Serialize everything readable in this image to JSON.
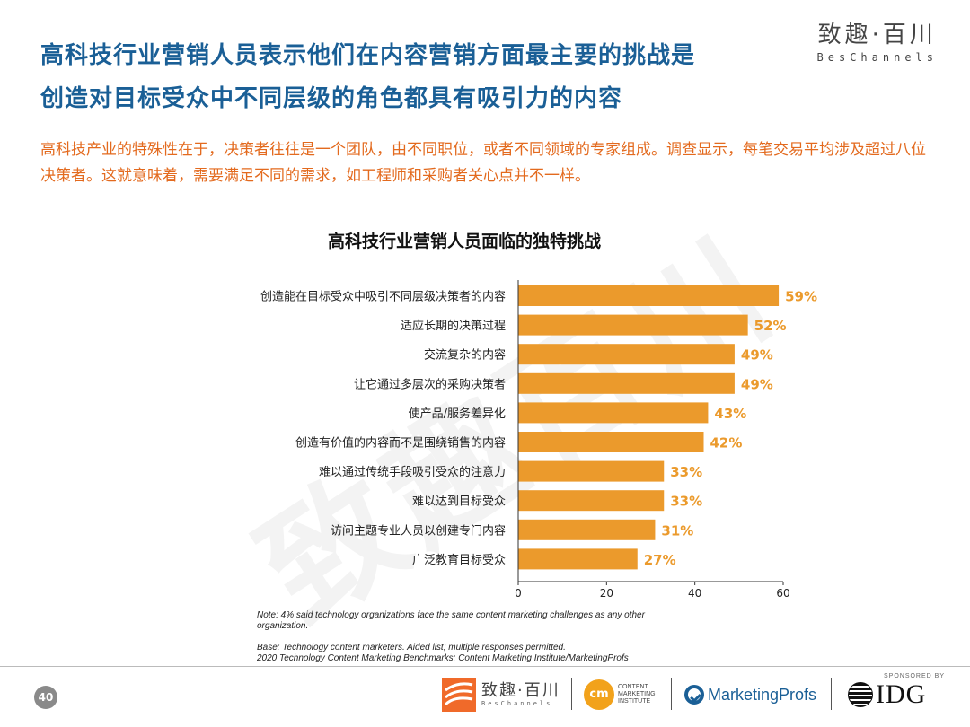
{
  "watermark": "致趣百川",
  "title": {
    "line1": "高科技行业营销人员表示他们在内容营销方面最主要的挑战是",
    "line2": "创造对目标受众中不同层级的角色都具有吸引力的内容"
  },
  "logo_top": {
    "cn": "致趣·百川",
    "en": "BesChannels"
  },
  "intro": "高科技产业的特殊性在于，决策者往往是一个团队，由不同职位，或者不同领域的专家组成。调查显示，每笔交易平均涉及超过八位决策者。这就意味着，需要满足不同的需求，如工程师和采购者关心点并不一样。",
  "chart_data": {
    "type": "bar",
    "orientation": "horizontal",
    "title": "高科技行业营销人员面临的独特挑战",
    "categories": [
      "创造能在目标受众中吸引不同层级决策者的内容",
      "适应长期的决策过程",
      "交流复杂的内容",
      "让它通过多层次的采购决策者",
      "使产品/服务差异化",
      "创造有价值的内容而不是围绕销售的内容",
      "难以通过传统手段吸引受众的注意力",
      "难以达到目标受众",
      "访问主题专业人员以创建专门内容",
      "广泛教育目标受众"
    ],
    "values": [
      59,
      52,
      49,
      49,
      43,
      42,
      33,
      33,
      31,
      27
    ],
    "value_labels": [
      "59%",
      "52%",
      "49%",
      "49%",
      "43%",
      "42%",
      "33%",
      "33%",
      "31%",
      "27%"
    ],
    "xlim": [
      0,
      60
    ],
    "xticks": [
      0,
      20,
      40,
      60
    ],
    "bar_color": "#eb9a2c",
    "label_color": "#eb9a2c",
    "grid": false
  },
  "notes": {
    "note": "Note: 4% said technology organizations face the same content marketing challenges as any other organization.",
    "base": "Base: Technology content marketers. Aided list; multiple responses permitted.",
    "source": "2020 Technology Content Marketing Benchmarks: Content Marketing Institute/MarketingProfs"
  },
  "footer": {
    "page_number": "40",
    "sponsored_by": "SPONSORED BY",
    "logo_bc_cn": "致趣·百川",
    "logo_bc_en": "BesChannels",
    "logo_cmi_mark": "cm",
    "logo_cmi_text": [
      "CONTENT",
      "MARKETING",
      "INSTITUTE"
    ],
    "logo_mp": "MarketingProfs",
    "logo_idg": "IDG"
  },
  "colors": {
    "title": "#1a5f96",
    "intro": "#e36a1e",
    "bar": "#eb9a2c"
  }
}
